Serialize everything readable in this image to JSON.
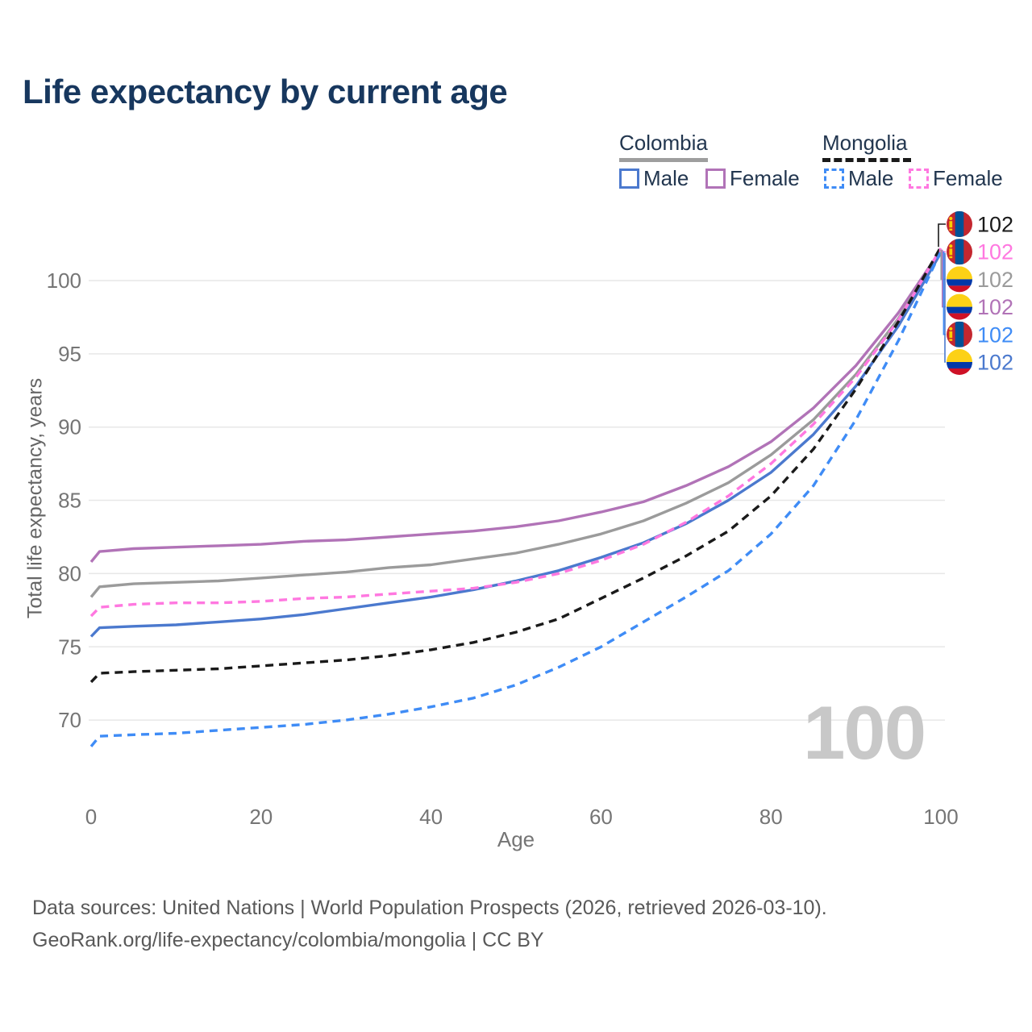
{
  "title": "Life expectancy by current age",
  "legend": {
    "groups": [
      {
        "label": "Colombia",
        "line_style": "solid",
        "underline_color": "#9e9e9e",
        "items": [
          {
            "label": "Male",
            "color": "#4b79ce",
            "dashed": false
          },
          {
            "label": "Female",
            "color": "#b173b7",
            "dashed": false
          }
        ]
      },
      {
        "label": "Mongolia",
        "line_style": "dashed",
        "underline_color": "#1a1a1a",
        "items": [
          {
            "label": "Male",
            "color": "#3f8cf6",
            "dashed": true
          },
          {
            "label": "Female",
            "color": "#ff78e0",
            "dashed": true
          }
        ]
      }
    ]
  },
  "chart_data": {
    "type": "line",
    "title": "Life expectancy by current age",
    "xlabel": "Age",
    "ylabel": "Total life expectancy, years",
    "x_ticks": [
      0,
      20,
      40,
      60,
      80,
      100
    ],
    "y_ticks": [
      70,
      75,
      80,
      85,
      90,
      95,
      100
    ],
    "xlim": [
      0,
      100
    ],
    "ylim": [
      67,
      103
    ],
    "grid": "horizontal",
    "legend_position": "top-right",
    "x": [
      0,
      1,
      5,
      10,
      15,
      20,
      25,
      30,
      35,
      40,
      45,
      50,
      55,
      60,
      65,
      70,
      75,
      80,
      85,
      90,
      95,
      100
    ],
    "series": [
      {
        "name": "Colombia Female",
        "country": "Colombia",
        "sex": "Female",
        "color": "#b173b7",
        "dashed": false,
        "values": [
          80.8,
          81.5,
          81.7,
          81.8,
          81.9,
          82.0,
          82.2,
          82.3,
          82.5,
          82.7,
          82.9,
          83.2,
          83.6,
          84.2,
          84.9,
          86.0,
          87.3,
          89.0,
          91.3,
          94.2,
          97.8,
          102.1
        ]
      },
      {
        "name": "Colombia All",
        "country": "Colombia",
        "sex": "Both",
        "color": "#9b9b9b",
        "dashed": false,
        "values": [
          78.4,
          79.1,
          79.3,
          79.4,
          79.5,
          79.7,
          79.9,
          80.1,
          80.4,
          80.6,
          81.0,
          81.4,
          82.0,
          82.7,
          83.6,
          84.8,
          86.2,
          88.1,
          90.5,
          93.6,
          97.4,
          102.1
        ]
      },
      {
        "name": "Colombia Male",
        "country": "Colombia",
        "sex": "Male",
        "color": "#4b79ce",
        "dashed": false,
        "values": [
          75.7,
          76.3,
          76.4,
          76.5,
          76.7,
          76.9,
          77.2,
          77.6,
          78.0,
          78.4,
          78.9,
          79.5,
          80.2,
          81.1,
          82.1,
          83.4,
          85.0,
          86.9,
          89.5,
          92.8,
          96.9,
          101.9
        ]
      },
      {
        "name": "Mongolia Female",
        "country": "Mongolia",
        "sex": "Female",
        "color": "#ff78e0",
        "dashed": true,
        "values": [
          77.1,
          77.7,
          77.9,
          78.0,
          78.0,
          78.1,
          78.3,
          78.4,
          78.6,
          78.8,
          79.0,
          79.4,
          80.0,
          80.9,
          82.0,
          83.5,
          85.3,
          87.5,
          90.2,
          93.4,
          97.3,
          102.2
        ]
      },
      {
        "name": "Mongolia All",
        "country": "Mongolia",
        "sex": "Both",
        "color": "#1a1a1a",
        "dashed": true,
        "values": [
          72.6,
          73.2,
          73.3,
          73.4,
          73.5,
          73.7,
          73.9,
          74.1,
          74.4,
          74.8,
          75.3,
          76.0,
          76.9,
          78.3,
          79.7,
          81.2,
          82.9,
          85.3,
          88.5,
          92.6,
          97.2,
          102.3
        ]
      },
      {
        "name": "Mongolia Male",
        "country": "Mongolia",
        "sex": "Male",
        "color": "#3f8cf6",
        "dashed": true,
        "values": [
          68.2,
          68.9,
          69.0,
          69.1,
          69.3,
          69.5,
          69.7,
          70.0,
          70.4,
          70.9,
          71.5,
          72.4,
          73.6,
          75.0,
          76.7,
          78.4,
          80.2,
          82.7,
          86.0,
          90.5,
          95.9,
          102.0
        ]
      }
    ],
    "watermark": "100"
  },
  "end_labels": [
    {
      "series": "Mongolia All",
      "flag": "mongolia",
      "text": "102",
      "color": "#1a1a1a"
    },
    {
      "series": "Mongolia Female",
      "flag": "mongolia",
      "text": "102",
      "color": "#ff78e0"
    },
    {
      "series": "Colombia All",
      "flag": "colombia",
      "text": "102",
      "color": "#9b9b9b"
    },
    {
      "series": "Colombia Female",
      "flag": "colombia",
      "text": "102",
      "color": "#b173b7"
    },
    {
      "series": "Mongolia Male",
      "flag": "mongolia",
      "text": "102",
      "color": "#3f8cf6"
    },
    {
      "series": "Colombia Male",
      "flag": "colombia",
      "text": "102",
      "color": "#4b79ce"
    }
  ],
  "flags": {
    "colombia": {
      "yellow": "#fcd116",
      "blue": "#0038a8",
      "red": "#ce1126"
    },
    "mongolia": {
      "red": "#c4272f",
      "blue": "#015197",
      "yellow": "#f9cf02"
    }
  },
  "footer": {
    "line1": "Data sources: United Nations | World Population Prospects (2026, retrieved 2026-03-10).",
    "line2": "GeoRank.org/life-expectancy/colombia/mongolia | CC BY"
  }
}
